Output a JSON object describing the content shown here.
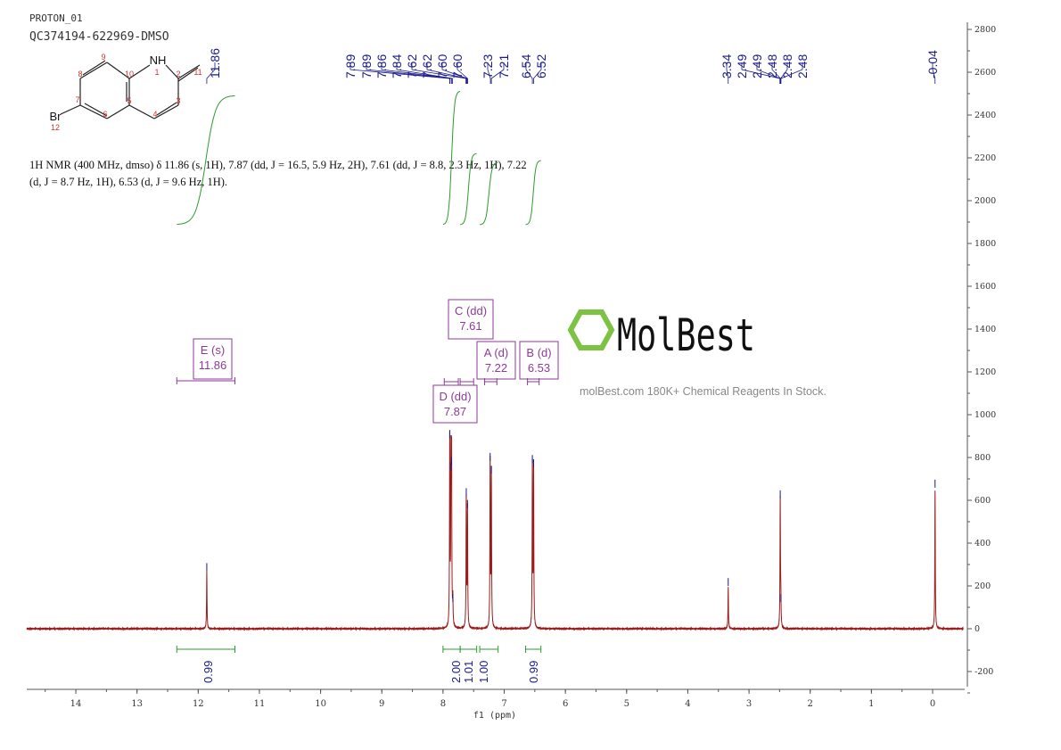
{
  "header": {
    "experiment": "PROTON_01",
    "sample": "QC374194-622969-DMSO"
  },
  "structure": {
    "atoms": [
      "NH",
      "1",
      "2",
      "3",
      "4",
      "5",
      "6",
      "7",
      "8",
      "9",
      "10",
      "11",
      "Br",
      "12"
    ]
  },
  "nmr_description": "1H NMR (400 MHz, dmso) δ 11.86 (s, 1H), 7.87 (dd, J = 16.5, 5.9 Hz, 2H), 7.61 (dd, J = 8.8, 2.3 Hz, 1H), 7.22 (d, J = 8.7 Hz, 1H), 6.53 (d, J = 9.6 Hz, 1H).",
  "watermark": {
    "brand": "MolBest",
    "tagline": "molBest.com 180K+ Chemical Reagents In Stock."
  },
  "colors": {
    "spectrum": "#9b1c1c",
    "peak_label": "#1a1a8c",
    "integral": "#2e9a2e",
    "multiplet": "#8e3a9a",
    "axis": "#555555",
    "logo": "#7dc242"
  },
  "chart_data": {
    "type": "line",
    "xlabel": "f1 (ppm)",
    "xlim": [
      14.8,
      -0.5
    ],
    "ylim": [
      -300,
      2800
    ],
    "x_ticks": [
      14,
      13,
      12,
      11,
      10,
      9,
      8,
      7,
      6,
      5,
      4,
      3,
      2,
      1,
      0
    ],
    "y_ticks": [
      -200,
      0,
      200,
      400,
      600,
      800,
      1000,
      1200,
      1400,
      1600,
      1800,
      2000,
      2200,
      2400,
      2600,
      2800
    ],
    "y_axis_position": "right",
    "peaks": [
      {
        "ppm": 11.86,
        "intensity": 265
      },
      {
        "ppm": 7.89,
        "intensity": 885
      },
      {
        "ppm": 7.87,
        "intensity": 735
      },
      {
        "ppm": 7.86,
        "intensity": 760
      },
      {
        "ppm": 7.84,
        "intensity": 120
      },
      {
        "ppm": 7.62,
        "intensity": 615
      },
      {
        "ppm": 7.6,
        "intensity": 560
      },
      {
        "ppm": 7.23,
        "intensity": 780
      },
      {
        "ppm": 7.21,
        "intensity": 720
      },
      {
        "ppm": 6.54,
        "intensity": 770
      },
      {
        "ppm": 6.52,
        "intensity": 750
      },
      {
        "ppm": 3.34,
        "intensity": 195
      },
      {
        "ppm": 2.49,
        "intensity": 605
      },
      {
        "ppm": 2.48,
        "intensity": 120
      },
      {
        "ppm": -0.04,
        "intensity": 655
      }
    ],
    "peak_labels": [
      {
        "text": "11.86",
        "ppm": 11.86
      },
      {
        "text": "7.89",
        "ppm": 7.89
      },
      {
        "text": "7.89",
        "ppm": 7.885
      },
      {
        "text": "7.86",
        "ppm": 7.86
      },
      {
        "text": "7.84",
        "ppm": 7.845
      },
      {
        "text": "7.62",
        "ppm": 7.625
      },
      {
        "text": "7.62",
        "ppm": 7.615
      },
      {
        "text": "7.60",
        "ppm": 7.605
      },
      {
        "text": "7.60",
        "ppm": 7.598
      },
      {
        "text": "7.23",
        "ppm": 7.225
      },
      {
        "text": "7.21",
        "ppm": 7.21
      },
      {
        "text": "6.54",
        "ppm": 6.54
      },
      {
        "text": "6.52",
        "ppm": 6.52
      },
      {
        "text": "3.34",
        "ppm": 3.34
      },
      {
        "text": "2.49",
        "ppm": 2.495
      },
      {
        "text": "2.49",
        "ppm": 2.49
      },
      {
        "text": "2.48",
        "ppm": 2.485
      },
      {
        "text": "2.48",
        "ppm": 2.482
      },
      {
        "text": "2.48",
        "ppm": 2.478
      },
      {
        "text": "-0.04",
        "ppm": -0.04
      }
    ],
    "integrals": [
      {
        "from": 12.35,
        "to": 11.4,
        "value": "0.99"
      },
      {
        "from": 8.0,
        "to": 7.72,
        "value": "2.00"
      },
      {
        "from": 7.72,
        "to": 7.45,
        "value": "1.01"
      },
      {
        "from": 7.4,
        "to": 7.1,
        "value": "1.00"
      },
      {
        "from": 6.65,
        "to": 6.4,
        "value": "0.99"
      }
    ],
    "multiplets": [
      {
        "label": "E (s)",
        "shift": "11.86",
        "from": 12.35,
        "to": 11.4
      },
      {
        "label": "D (dd)",
        "shift": "7.87",
        "from": 7.98,
        "to": 7.75
      },
      {
        "label": "C (dd)",
        "shift": "7.61",
        "from": 7.72,
        "to": 7.5
      },
      {
        "label": "A (d)",
        "shift": "7.22",
        "from": 7.32,
        "to": 7.12
      },
      {
        "label": "B (d)",
        "shift": "6.53",
        "from": 6.62,
        "to": 6.43
      }
    ]
  }
}
